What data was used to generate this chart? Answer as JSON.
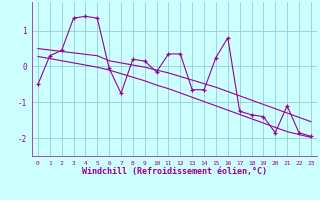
{
  "x": [
    0,
    1,
    2,
    3,
    4,
    5,
    6,
    7,
    8,
    9,
    10,
    11,
    12,
    13,
    14,
    15,
    16,
    17,
    18,
    19,
    20,
    21,
    22,
    23
  ],
  "y_main": [
    -0.5,
    0.3,
    0.45,
    1.35,
    1.4,
    1.35,
    -0.05,
    -0.75,
    0.2,
    0.15,
    -0.15,
    0.35,
    0.35,
    -0.65,
    -0.65,
    0.25,
    0.8,
    -1.25,
    -1.35,
    -1.4,
    -1.85,
    -1.1,
    -1.85,
    -1.95
  ],
  "y_trend1": [
    0.5,
    0.46,
    0.42,
    0.38,
    0.34,
    0.3,
    0.16,
    0.1,
    0.04,
    -0.02,
    -0.1,
    -0.18,
    -0.28,
    -0.38,
    -0.48,
    -0.58,
    -0.7,
    -0.82,
    -0.94,
    -1.06,
    -1.18,
    -1.3,
    -1.42,
    -1.54
  ],
  "y_trend2": [
    0.28,
    0.22,
    0.16,
    0.1,
    0.04,
    -0.02,
    -0.1,
    -0.2,
    -0.3,
    -0.4,
    -0.52,
    -0.62,
    -0.74,
    -0.86,
    -0.98,
    -1.1,
    -1.22,
    -1.34,
    -1.46,
    -1.58,
    -1.7,
    -1.82,
    -1.9,
    -1.98
  ],
  "color": "#990099",
  "bg_color": "#ccffff",
  "grid_color": "#99cccc",
  "xlabel": "Windchill (Refroidissement éolien,°C)",
  "ylim": [
    -2.5,
    1.8
  ],
  "xlim": [
    -0.5,
    23.5
  ],
  "yticks": [
    -2,
    -1,
    0,
    1
  ],
  "xticks": [
    0,
    1,
    2,
    3,
    4,
    5,
    6,
    7,
    8,
    9,
    10,
    11,
    12,
    13,
    14,
    15,
    16,
    17,
    18,
    19,
    20,
    21,
    22,
    23
  ]
}
